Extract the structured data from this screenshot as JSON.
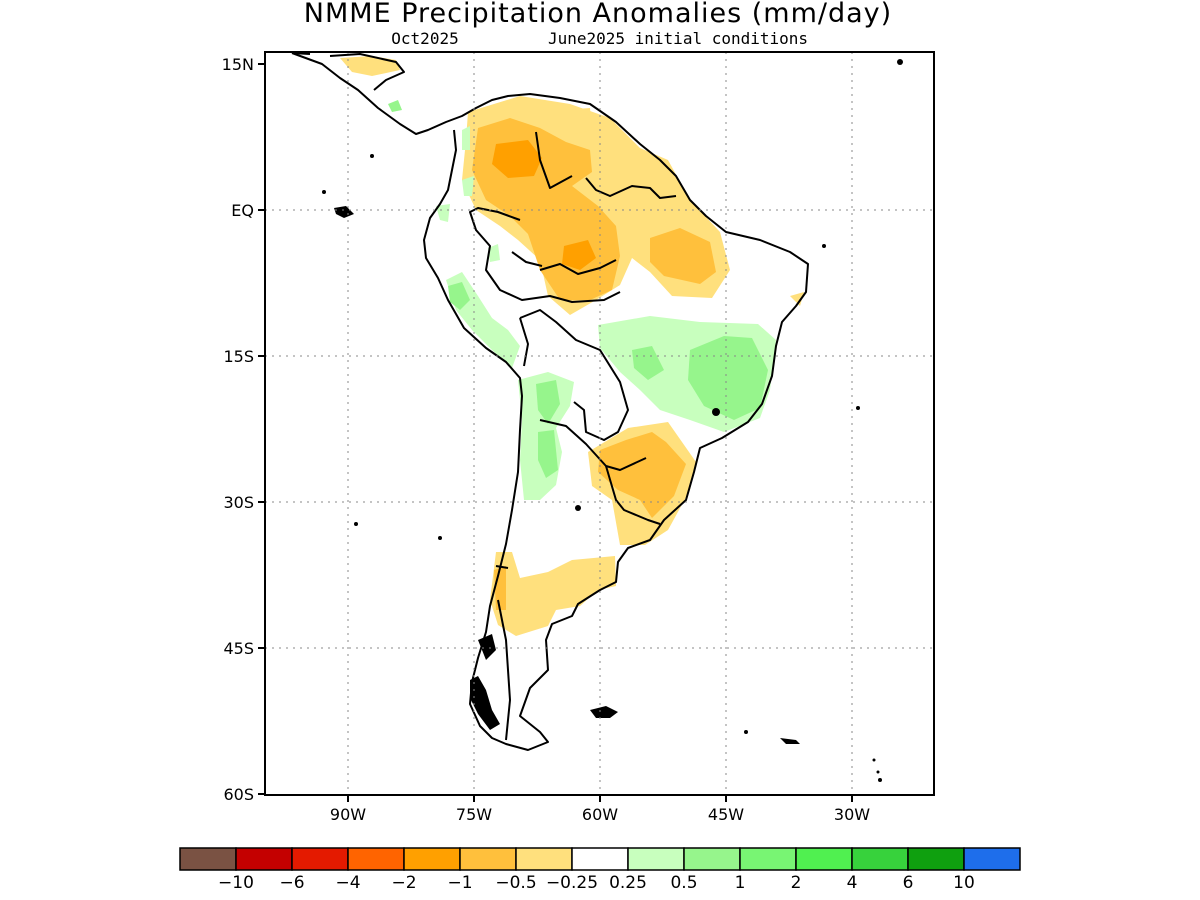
{
  "title": "NMME Precipitation Anomalies (mm/day)",
  "subtitle_left": "Oct2025",
  "subtitle_right": "June2025 initial conditions",
  "lat_ticks": [
    "15N",
    "EQ",
    "15S",
    "30S",
    "45S",
    "60S"
  ],
  "lon_ticks": [
    "90W",
    "75W",
    "60W",
    "45W",
    "30W"
  ],
  "colorbar": {
    "colors": [
      "#7a5243",
      "#c40000",
      "#e41a00",
      "#ff6400",
      "#ffa000",
      "#ffc03c",
      "#ffe07d",
      "#ffffff",
      "#c8ffbe",
      "#96f58c",
      "#78f573",
      "#50f050",
      "#37d23c",
      "#0fa00f",
      "#1e6eeb"
    ],
    "labels": [
      "−10",
      "−6",
      "−4",
      "−2",
      "−1",
      "−0.5",
      "−0.25",
      "0.25",
      "0.5",
      "1",
      "2",
      "4",
      "6",
      "10"
    ]
  }
}
